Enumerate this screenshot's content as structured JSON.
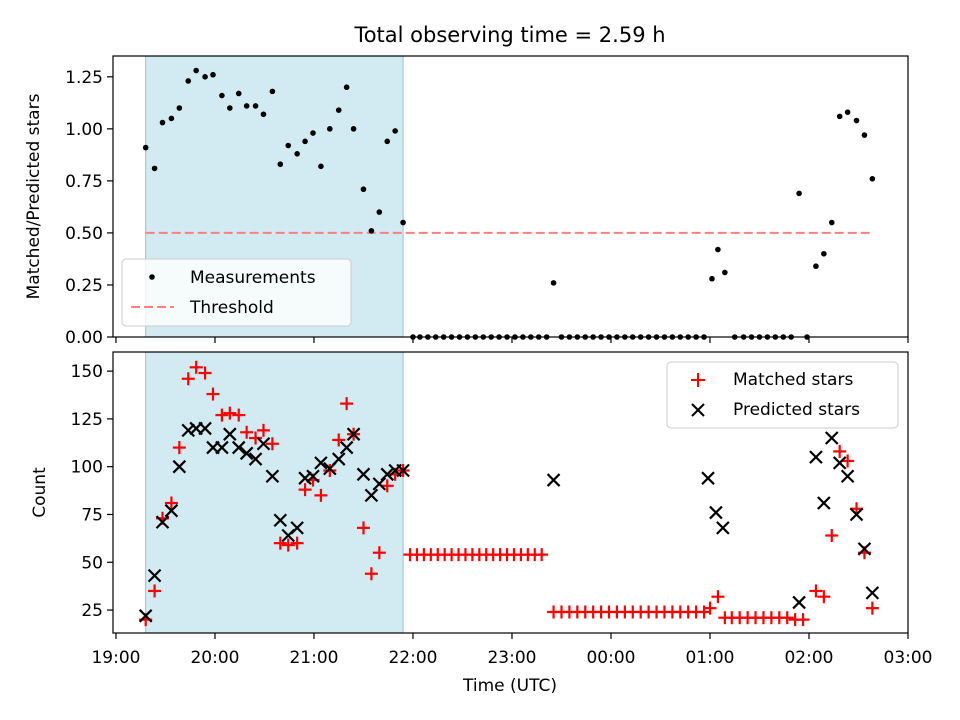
{
  "figure": {
    "title": "Total observing time = 2.59 h"
  },
  "chart_data": [
    {
      "type": "scatter",
      "panel": "top",
      "ylabel": "Matched/Predicted stars",
      "xlabel": "",
      "xlim_hours": [
        18.97,
        27.0
      ],
      "ylim": [
        0,
        1.35
      ],
      "yticks": [
        0.0,
        0.25,
        0.5,
        0.75,
        1.0,
        1.25
      ],
      "ytick_labels": [
        "0.00",
        "0.25",
        "0.50",
        "0.75",
        "1.00",
        "1.25"
      ],
      "shaded_span_hours": [
        19.3,
        21.9
      ],
      "legend": {
        "placement": "lower-left",
        "entries": [
          "Measurements",
          "Threshold"
        ]
      },
      "threshold": {
        "name": "Threshold",
        "value": 0.5,
        "x_range_hours": [
          19.3,
          26.65
        ],
        "color": "#ff7f7f"
      },
      "series": [
        {
          "name": "Measurements",
          "marker": "dot",
          "color": "#000000",
          "x_hours": [
            19.3,
            19.39,
            19.47,
            19.56,
            19.64,
            19.73,
            19.81,
            19.9,
            19.98,
            20.07,
            20.15,
            20.24,
            20.32,
            20.41,
            20.49,
            20.58,
            20.66,
            20.74,
            20.83,
            20.91,
            20.99,
            21.07,
            21.16,
            21.25,
            21.33,
            21.4,
            21.5,
            21.58,
            21.66,
            21.74,
            21.82,
            21.9,
            22.0,
            22.07,
            22.15,
            22.23,
            22.31,
            22.39,
            22.47,
            22.55,
            22.63,
            22.71,
            22.79,
            22.87,
            22.95,
            23.03,
            23.11,
            23.19,
            23.27,
            23.35,
            23.42,
            23.5,
            23.58,
            23.66,
            23.74,
            23.82,
            23.9,
            23.98,
            24.06,
            24.14,
            24.22,
            24.3,
            24.38,
            24.46,
            24.54,
            24.62,
            24.7,
            24.78,
            24.86,
            24.94,
            25.02,
            25.08,
            25.15,
            25.25,
            25.34,
            25.42,
            25.5,
            25.58,
            25.66,
            25.74,
            25.82,
            25.9,
            25.98,
            26.07,
            26.15,
            26.23,
            26.31,
            26.39,
            26.48,
            26.56,
            26.64
          ],
          "y": [
            0.91,
            0.81,
            1.03,
            1.05,
            1.1,
            1.23,
            1.28,
            1.25,
            1.26,
            1.16,
            1.1,
            1.17,
            1.11,
            1.11,
            1.07,
            1.18,
            0.83,
            0.92,
            0.88,
            0.94,
            0.98,
            0.82,
            1.0,
            1.09,
            1.2,
            1.0,
            0.71,
            0.51,
            0.6,
            0.94,
            0.99,
            0.55,
            0.0,
            0.0,
            0.0,
            0.0,
            0.0,
            0.0,
            0.0,
            0.0,
            0.0,
            0.0,
            0.0,
            0.0,
            0.0,
            0.0,
            0.0,
            0.0,
            0.0,
            0.0,
            0.26,
            0.0,
            0.0,
            0.0,
            0.0,
            0.0,
            0.0,
            0.0,
            0.0,
            0.0,
            0.0,
            0.0,
            0.0,
            0.0,
            0.0,
            0.0,
            0.0,
            0.0,
            0.0,
            0.0,
            0.28,
            0.42,
            0.31,
            0.0,
            0.0,
            0.0,
            0.0,
            0.0,
            0.0,
            0.0,
            0.0,
            0.69,
            0.0,
            0.34,
            0.4,
            0.55,
            1.06,
            1.08,
            1.04,
            0.97,
            0.76
          ]
        }
      ]
    },
    {
      "type": "scatter",
      "panel": "bottom",
      "ylabel": "Count",
      "xlabel": "Time (UTC)",
      "xlim_hours": [
        18.97,
        27.0
      ],
      "ylim": [
        13,
        160
      ],
      "yticks": [
        25,
        50,
        75,
        100,
        125,
        150
      ],
      "ytick_labels": [
        "25",
        "50",
        "75",
        "100",
        "125",
        "150"
      ],
      "xticks_hours": [
        19,
        20,
        21,
        22,
        23,
        24,
        25,
        26,
        27
      ],
      "xtick_labels": [
        "19:00",
        "20:00",
        "21:00",
        "22:00",
        "23:00",
        "00:00",
        "01:00",
        "02:00",
        "03:00"
      ],
      "shaded_span_hours": [
        19.3,
        21.9
      ],
      "legend": {
        "placement": "upper-right",
        "entries": [
          "Matched stars",
          "Predicted stars"
        ]
      },
      "series": [
        {
          "name": "Matched stars",
          "marker": "plus",
          "color": "#ff0000",
          "x_hours": [
            19.3,
            19.39,
            19.47,
            19.56,
            19.64,
            19.73,
            19.81,
            19.9,
            19.98,
            20.07,
            20.15,
            20.24,
            20.32,
            20.41,
            20.49,
            20.58,
            20.66,
            20.74,
            20.83,
            20.91,
            20.99,
            21.07,
            21.16,
            21.25,
            21.33,
            21.4,
            21.5,
            21.58,
            21.66,
            21.74,
            21.82,
            21.9,
            21.97,
            22.04,
            22.11,
            22.18,
            22.25,
            22.32,
            22.39,
            22.46,
            22.53,
            22.6,
            22.67,
            22.74,
            22.81,
            22.88,
            22.95,
            23.02,
            23.09,
            23.16,
            23.23,
            23.3,
            23.42,
            23.5,
            23.58,
            23.66,
            23.74,
            23.82,
            23.9,
            23.98,
            24.06,
            24.14,
            24.22,
            24.3,
            24.38,
            24.46,
            24.54,
            24.62,
            24.7,
            24.78,
            24.86,
            24.94,
            25.0,
            25.08,
            25.15,
            25.22,
            25.3,
            25.38,
            25.46,
            25.54,
            25.62,
            25.7,
            25.78,
            25.86,
            25.94,
            26.07,
            26.15,
            26.23,
            26.31,
            26.39,
            26.48,
            26.56,
            26.64
          ],
          "y": [
            20,
            35,
            73,
            81,
            110,
            146,
            152,
            149,
            138,
            127,
            128,
            127,
            118,
            115,
            119,
            112,
            60,
            59,
            60,
            88,
            93,
            85,
            98,
            114,
            133,
            117,
            68,
            44,
            55,
            90,
            96,
            98,
            54,
            54,
            54,
            54,
            54,
            54,
            54,
            54,
            54,
            54,
            54,
            54,
            54,
            54,
            54,
            54,
            54,
            54,
            54,
            54,
            24,
            24,
            24,
            24,
            24,
            24,
            24,
            24,
            24,
            24,
            24,
            24,
            24,
            24,
            24,
            24,
            24,
            24,
            24,
            24,
            26,
            32,
            21,
            21,
            21,
            21,
            21,
            21,
            21,
            21,
            21,
            20,
            20,
            35,
            32,
            64,
            108,
            103,
            78,
            55,
            26
          ]
        },
        {
          "name": "Predicted stars",
          "marker": "x",
          "color": "#000000",
          "x_hours": [
            19.3,
            19.39,
            19.47,
            19.56,
            19.64,
            19.73,
            19.81,
            19.9,
            19.98,
            20.07,
            20.15,
            20.24,
            20.32,
            20.41,
            20.49,
            20.58,
            20.66,
            20.74,
            20.83,
            20.91,
            20.99,
            21.07,
            21.16,
            21.25,
            21.33,
            21.4,
            21.5,
            21.58,
            21.66,
            21.74,
            21.82,
            21.9,
            23.42,
            24.98,
            25.06,
            25.13,
            25.9,
            26.07,
            26.15,
            26.23,
            26.31,
            26.39,
            26.48,
            26.56,
            26.64
          ],
          "y": [
            22,
            43,
            71,
            77,
            100,
            119,
            120,
            120,
            110,
            110,
            117,
            110,
            107,
            104,
            112,
            95,
            72,
            64,
            68,
            94,
            95,
            102,
            99,
            104,
            110,
            117,
            96,
            85,
            91,
            96,
            98,
            98,
            93,
            94,
            76,
            68,
            29,
            105,
            81,
            115,
            102,
            95,
            75,
            57,
            34
          ]
        }
      ]
    }
  ]
}
